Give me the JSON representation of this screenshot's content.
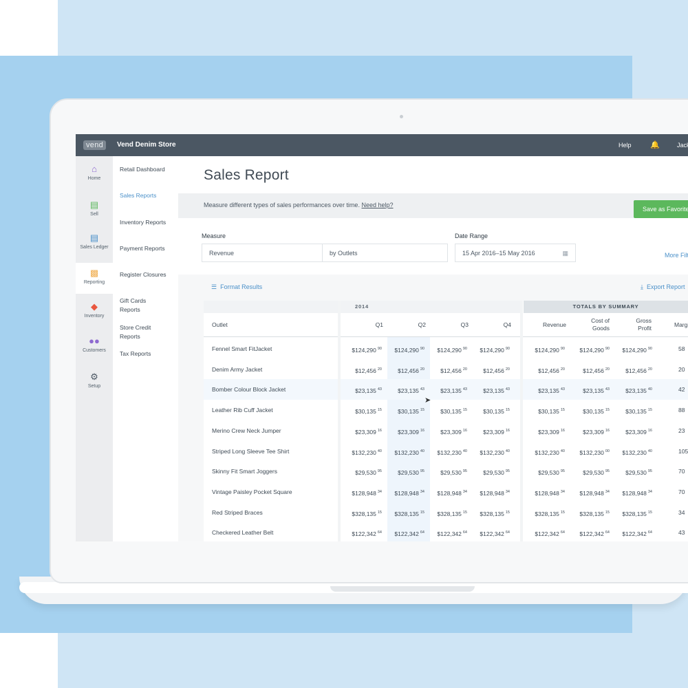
{
  "app": {
    "logo": "vend",
    "store_name": "Vend Denim Store",
    "help_label": "Help",
    "user_label": "Jack"
  },
  "nav": {
    "items": [
      {
        "label": "Home",
        "icon": "home-icon",
        "color": "#8e6ad0"
      },
      {
        "label": "Sell",
        "icon": "register-icon",
        "color": "#5cb85c"
      },
      {
        "label": "Sales Ledger",
        "icon": "ledger-icon",
        "color": "#4a90c9"
      },
      {
        "label": "Reporting",
        "icon": "chart-icon",
        "color": "#f0ad4e"
      },
      {
        "label": "Inventory",
        "icon": "tag-icon",
        "color": "#e9573f"
      },
      {
        "label": "Customers",
        "icon": "people-icon",
        "color": "#8e6ad0"
      },
      {
        "label": "Setup",
        "icon": "gear-icon",
        "color": "#4b5763"
      }
    ]
  },
  "subnav": {
    "items": [
      {
        "label": "Retail Dashboard"
      },
      {
        "label": "Sales Reports"
      },
      {
        "label": "Inventory Reports"
      },
      {
        "label": "Payment Reports"
      },
      {
        "label": "Register Closures"
      },
      {
        "label": "Gift Cards Reports"
      },
      {
        "label": "Store Credit Reports"
      },
      {
        "label": "Tax Reports"
      }
    ]
  },
  "page": {
    "title": "Sales Report",
    "info_text": "Measure different types of sales performances over time.",
    "info_link": "Need help?",
    "save_button": "Save as Favorite"
  },
  "filters": {
    "measure_label": "Measure",
    "measure_value": "Revenue",
    "group_value": "by Outlets",
    "date_label": "Date Range",
    "date_value": "15 Apr 2016–15 May 2016",
    "more_filters": "More Filters"
  },
  "results": {
    "format_label": "Format Results",
    "export_label": "Export Report"
  },
  "table": {
    "group_year": "2014",
    "group_totals": "TOTALS BY SUMMARY",
    "headers": {
      "outlet": "Outlet",
      "q1": "Q1",
      "q2": "Q2",
      "q3": "Q3",
      "q4": "Q4",
      "revenue": "Revenue",
      "cost_line1": "Cost of",
      "cost_line2": "Goods",
      "gross_line1": "Gross",
      "gross_line2": "Profit",
      "margin": "Margin"
    },
    "rows": [
      {
        "outlet": "Fennel Smart FitJacket",
        "q": [
          "$124,290",
          "$124,290",
          "$124,290",
          "$124,290"
        ],
        "qc": [
          "90",
          "90",
          "90",
          "90"
        ],
        "t": [
          "$124,290",
          "$124,290",
          "$124,290"
        ],
        "tc": [
          "90",
          "90",
          "90"
        ],
        "margin": "58"
      },
      {
        "outlet": "Denim Army Jacket",
        "q": [
          "$12,456",
          "$12,456",
          "$12,456",
          "$12,456"
        ],
        "qc": [
          "20",
          "20",
          "20",
          "20"
        ],
        "t": [
          "$12,456",
          "$12,456",
          "$12,456"
        ],
        "tc": [
          "20",
          "20",
          "20"
        ],
        "margin": "20"
      },
      {
        "outlet": "Bomber Colour Block Jacket",
        "q": [
          "$23,135",
          "$23,135",
          "$23,135",
          "$23,135"
        ],
        "qc": [
          "43",
          "43",
          "43",
          "43"
        ],
        "t": [
          "$23,135",
          "$23,135",
          "$23,135"
        ],
        "tc": [
          "43",
          "43",
          "40"
        ],
        "margin": "42"
      },
      {
        "outlet": "Leather Rib Cuff Jacket",
        "q": [
          "$30,135",
          "$30,135",
          "$30,135",
          "$30,135"
        ],
        "qc": [
          "15",
          "15",
          "15",
          "15"
        ],
        "t": [
          "$30,135",
          "$30,135",
          "$30,135"
        ],
        "tc": [
          "15",
          "15",
          "15"
        ],
        "margin": "88"
      },
      {
        "outlet": "Merino Crew Neck Jumper",
        "q": [
          "$23,309",
          "$23,309",
          "$23,309",
          "$23,309"
        ],
        "qc": [
          "16",
          "16",
          "16",
          "16"
        ],
        "t": [
          "$23,309",
          "$23,309",
          "$23,309"
        ],
        "tc": [
          "16",
          "16",
          "16"
        ],
        "margin": "23"
      },
      {
        "outlet": "Striped Long Sleeve Tee Shirt",
        "q": [
          "$132,230",
          "$132,230",
          "$132,230",
          "$132,230"
        ],
        "qc": [
          "40",
          "40",
          "40",
          "40"
        ],
        "t": [
          "$132,230",
          "$132,230",
          "$132,230"
        ],
        "tc": [
          "40",
          "00",
          "40"
        ],
        "margin": "105"
      },
      {
        "outlet": "Skinny Fit Smart Joggers",
        "q": [
          "$29,530",
          "$29,530",
          "$29,530",
          "$29,530"
        ],
        "qc": [
          "95",
          "95",
          "95",
          "95"
        ],
        "t": [
          "$29,530",
          "$29,530",
          "$29,530"
        ],
        "tc": [
          "95",
          "95",
          "95"
        ],
        "margin": "70"
      },
      {
        "outlet": "Vintage Paisley Pocket Square",
        "q": [
          "$128,948",
          "$128,948",
          "$128,948",
          "$128,948"
        ],
        "qc": [
          "34",
          "34",
          "34",
          "34"
        ],
        "t": [
          "$128,948",
          "$128,948",
          "$128,948"
        ],
        "tc": [
          "34",
          "34",
          "34"
        ],
        "margin": "70"
      },
      {
        "outlet": "Red Striped Braces",
        "q": [
          "$328,135",
          "$328,135",
          "$328,135",
          "$328,135"
        ],
        "qc": [
          "15",
          "15",
          "15",
          "15"
        ],
        "t": [
          "$328,135",
          "$328,135",
          "$328,135"
        ],
        "tc": [
          "15",
          "15",
          "15"
        ],
        "margin": "34"
      },
      {
        "outlet": "Checkered Leather Belt",
        "q": [
          "$122,342",
          "$122,342",
          "$122,342",
          "$122,342"
        ],
        "qc": [
          "64",
          "64",
          "64",
          "64"
        ],
        "t": [
          "$122,342",
          "$122,342",
          "$122,342"
        ],
        "tc": [
          "64",
          "64",
          "64"
        ],
        "margin": "43"
      }
    ]
  }
}
